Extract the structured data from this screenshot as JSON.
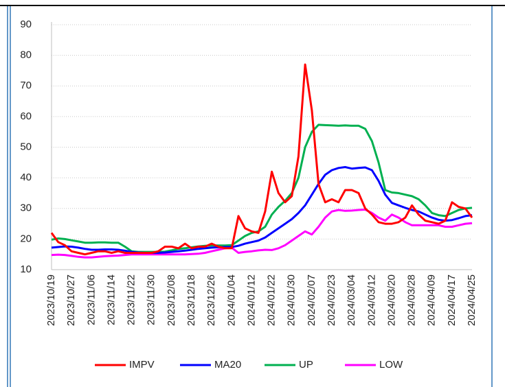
{
  "chart_data": {
    "type": "line",
    "categories": [
      "2023/10/19",
      null,
      null,
      "2023/10/27",
      null,
      null,
      "2023/11/06",
      null,
      null,
      "2023/11/14",
      null,
      null,
      "2023/11/22",
      null,
      null,
      "2023/11/30",
      null,
      null,
      "2023/12/08",
      null,
      null,
      "2023/12/18",
      null,
      null,
      "2023/12/26",
      null,
      null,
      "2024/01/04",
      null,
      null,
      "2024/01/12",
      null,
      null,
      "2024/01/22",
      null,
      null,
      "2024/01/30",
      null,
      null,
      "2024/02/07",
      null,
      null,
      "2024/02/23",
      null,
      null,
      "2024/03/04",
      null,
      null,
      "2024/03/12",
      null,
      null,
      "2024/03/20",
      null,
      null,
      "2024/03/28",
      null,
      null,
      "2024/04/09",
      null,
      null,
      "2024/04/17",
      null,
      null,
      "2024/04/25"
    ],
    "series": [
      {
        "name": "IMPV",
        "color": "#ff0000",
        "values": [
          22,
          19,
          18,
          16,
          15.5,
          15,
          15.5,
          16,
          16,
          15.5,
          16,
          15.5,
          15.5,
          15.5,
          15.5,
          15.5,
          16,
          17.5,
          17.5,
          17,
          18.5,
          17,
          17.5,
          17.5,
          18.5,
          17.5,
          17,
          17,
          27.5,
          23.5,
          22.5,
          22,
          29,
          42,
          35,
          32,
          34,
          47,
          77,
          62,
          38,
          32,
          33,
          32,
          36,
          36,
          35,
          30,
          28,
          25.5,
          25,
          25,
          25.5,
          27,
          31,
          28,
          26,
          25.5,
          25,
          26,
          32,
          30.5,
          30,
          27
        ]
      },
      {
        "name": "MA20",
        "color": "#0000ff",
        "values": [
          17.2,
          17.4,
          17.6,
          17.5,
          17.2,
          16.8,
          16.5,
          16.5,
          16.6,
          16.6,
          16.5,
          16.2,
          15.8,
          15.6,
          15.5,
          15.5,
          15.5,
          15.6,
          15.8,
          16,
          16.2,
          16.5,
          16.8,
          17,
          17.2,
          17.3,
          17.4,
          17.4,
          17.8,
          18.5,
          19,
          19.5,
          20.5,
          22,
          23.5,
          25,
          26.5,
          28.5,
          31,
          34.5,
          38,
          41,
          42.5,
          43.2,
          43.5,
          43,
          43.2,
          43.4,
          42.5,
          39,
          34.5,
          31.8,
          31,
          30.2,
          29.5,
          29,
          28,
          27,
          26.3,
          26,
          26.2,
          26.8,
          27.5,
          27.8
        ]
      },
      {
        "name": "UP",
        "color": "#00b050",
        "values": [
          19.8,
          20.2,
          20,
          19.6,
          19.2,
          18.8,
          18.8,
          18.9,
          18.9,
          18.8,
          18.8,
          17.5,
          16,
          15.8,
          15.8,
          15.8,
          15.8,
          15.9,
          16.3,
          16.8,
          17,
          17.3,
          17.6,
          17.8,
          17.9,
          17.9,
          17.9,
          18,
          19.5,
          21,
          22,
          22.5,
          24,
          28,
          30.5,
          32.5,
          35,
          40,
          50,
          55,
          57.3,
          57.2,
          57.1,
          57,
          57.1,
          57,
          57,
          56,
          52,
          45,
          36,
          35.2,
          35,
          34.5,
          34,
          33,
          31,
          28.5,
          27.8,
          27.5,
          28.5,
          29.5,
          30,
          30.2
        ]
      },
      {
        "name": "LOW",
        "color": "#ff00ff",
        "values": [
          14.8,
          14.9,
          14.8,
          14.5,
          14.2,
          14,
          14,
          14.2,
          14.4,
          14.5,
          14.6,
          14.8,
          15,
          15,
          15,
          15,
          15,
          15,
          15,
          15,
          15,
          15.1,
          15.2,
          15.5,
          16,
          16.5,
          17,
          17.2,
          15.5,
          15.8,
          16,
          16.3,
          16.5,
          16.4,
          17,
          18,
          19.5,
          21,
          22.5,
          21.5,
          24,
          27,
          29,
          29.5,
          29.2,
          29.3,
          29.5,
          29.6,
          28.5,
          27,
          26,
          28,
          27,
          25.5,
          24.5,
          24.5,
          24.5,
          24.5,
          24.5,
          24,
          24,
          24.5,
          25,
          25.2
        ]
      }
    ],
    "ylim": [
      10,
      90
    ],
    "yticks": [
      10,
      20,
      30,
      40,
      50,
      60,
      70,
      80,
      90
    ],
    "grid": true,
    "legend": "bottom"
  }
}
